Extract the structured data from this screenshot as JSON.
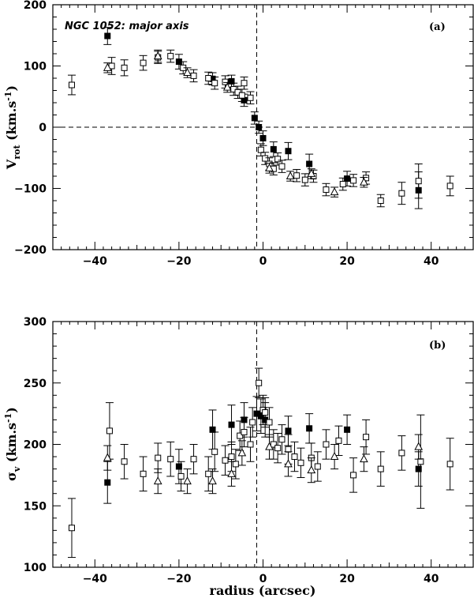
{
  "chart_data": [
    {
      "type": "scatter",
      "panel_label": "(a)",
      "title": "NGC 1052: major axis",
      "ylabel": {
        "main": "V",
        "sub": "rot",
        "unit": " (km.s",
        "exp": "-1",
        "close": ")"
      },
      "xlim": [
        -50,
        50
      ],
      "ylim": [
        -200,
        200
      ],
      "xticks": [
        -40,
        -20,
        0,
        20,
        40
      ],
      "xtick_labels": [
        "−40",
        "−20",
        "0",
        "20",
        "40"
      ],
      "yticks": [
        -200,
        -100,
        0,
        100,
        200
      ],
      "ytick_labels": [
        "−200",
        "−100",
        "0",
        "100",
        "200"
      ],
      "reference_lines": {
        "x": -1.5,
        "y": 0
      },
      "series": [
        {
          "marker": "filled-square",
          "points": [
            {
              "x": -37,
              "y": 149,
              "err": 14
            },
            {
              "x": -20,
              "y": 107,
              "err": 12
            },
            {
              "x": -12,
              "y": 79,
              "err": 10
            },
            {
              "x": -7.5,
              "y": 75,
              "err": 10
            },
            {
              "x": -4.5,
              "y": 44,
              "err": 10
            },
            {
              "x": -2,
              "y": 15,
              "err": 10
            },
            {
              "x": -1,
              "y": 0,
              "err": 10
            },
            {
              "x": 0,
              "y": -18,
              "err": 12
            },
            {
              "x": 2.5,
              "y": -36,
              "err": 12
            },
            {
              "x": 6,
              "y": -39,
              "err": 14
            },
            {
              "x": 11,
              "y": -60,
              "err": 16
            },
            {
              "x": 20,
              "y": -84,
              "err": 12
            },
            {
              "x": 37,
              "y": -103,
              "err": 30
            }
          ]
        },
        {
          "marker": "open-square",
          "points": [
            {
              "x": -45.5,
              "y": 69,
              "err": 16
            },
            {
              "x": -36,
              "y": 100,
              "err": 14
            },
            {
              "x": -33,
              "y": 97,
              "err": 13
            },
            {
              "x": -28.5,
              "y": 105,
              "err": 12
            },
            {
              "x": -25,
              "y": 114,
              "err": 10
            },
            {
              "x": -22,
              "y": 116,
              "err": 10
            },
            {
              "x": -19,
              "y": 97,
              "err": 10
            },
            {
              "x": -16.5,
              "y": 84,
              "err": 10
            },
            {
              "x": -13,
              "y": 80,
              "err": 10
            },
            {
              "x": -11.5,
              "y": 72,
              "err": 10
            },
            {
              "x": -9,
              "y": 74,
              "err": 10
            },
            {
              "x": -7,
              "y": 62,
              "err": 10
            },
            {
              "x": -6,
              "y": 57,
              "err": 10
            },
            {
              "x": -5,
              "y": 52,
              "err": 10
            },
            {
              "x": -4.5,
              "y": 72,
              "err": 10
            },
            {
              "x": -3,
              "y": 48,
              "err": 10
            },
            {
              "x": -0.5,
              "y": -37,
              "err": 10
            },
            {
              "x": 0.5,
              "y": -51,
              "err": 10
            },
            {
              "x": 1.5,
              "y": -60,
              "err": 10
            },
            {
              "x": 2.5,
              "y": -68,
              "err": 10
            },
            {
              "x": 3.5,
              "y": -52,
              "err": 10
            },
            {
              "x": 4.5,
              "y": -64,
              "err": 10
            },
            {
              "x": 8,
              "y": -79,
              "err": 10
            },
            {
              "x": 10,
              "y": -86,
              "err": 10
            },
            {
              "x": 12,
              "y": -80,
              "err": 10
            },
            {
              "x": 15,
              "y": -102,
              "err": 10
            },
            {
              "x": 19,
              "y": -93,
              "err": 10
            },
            {
              "x": 21.5,
              "y": -87,
              "err": 10
            },
            {
              "x": 24.5,
              "y": -83,
              "err": 10
            },
            {
              "x": 28,
              "y": -120,
              "err": 10
            },
            {
              "x": 33,
              "y": -108,
              "err": 18
            },
            {
              "x": 37,
              "y": -88,
              "err": 28
            },
            {
              "x": 44.5,
              "y": -96,
              "err": 16
            }
          ]
        },
        {
          "marker": "open-triangle",
          "points": [
            {
              "x": -37,
              "y": 97,
              "err": 8
            },
            {
              "x": -25,
              "y": 116,
              "err": 10
            },
            {
              "x": -18,
              "y": 89,
              "err": 8
            },
            {
              "x": -8.5,
              "y": 65,
              "err": 8
            },
            {
              "x": 1.5,
              "y": -67,
              "err": 8
            },
            {
              "x": 6.5,
              "y": -80,
              "err": 8
            },
            {
              "x": 11.5,
              "y": -76,
              "err": 8
            },
            {
              "x": 17,
              "y": -106,
              "err": 8
            },
            {
              "x": 24,
              "y": -90,
              "err": 8
            }
          ]
        }
      ]
    },
    {
      "type": "scatter",
      "panel_label": "(b)",
      "xlabel": "radius (arcsec)",
      "ylabel": {
        "main": "σ",
        "sub": "v",
        "unit": " (km.s",
        "exp": "-1",
        "close": ")"
      },
      "xlim": [
        -50,
        50
      ],
      "ylim": [
        100,
        300
      ],
      "xticks": [
        -40,
        -20,
        0,
        20,
        40
      ],
      "xtick_labels": [
        "−40",
        "−20",
        "0",
        "20",
        "40"
      ],
      "yticks": [
        100,
        150,
        200,
        250,
        300
      ],
      "ytick_labels": [
        "100",
        "150",
        "200",
        "250",
        "300"
      ],
      "reference_lines": {
        "x": -1.5
      },
      "series": [
        {
          "marker": "filled-square",
          "points": [
            {
              "x": -37,
              "y": 169,
              "err": 17
            },
            {
              "x": -20,
              "y": 182,
              "err": 14
            },
            {
              "x": -12,
              "y": 212,
              "err": 16
            },
            {
              "x": -7.5,
              "y": 216,
              "err": 16
            },
            {
              "x": -4.5,
              "y": 220,
              "err": 14
            },
            {
              "x": -1.5,
              "y": 225,
              "err": 14
            },
            {
              "x": -0.5,
              "y": 223,
              "err": 14
            },
            {
              "x": 0.5,
              "y": 220,
              "err": 14
            },
            {
              "x": 6,
              "y": 211,
              "err": 12
            },
            {
              "x": 11,
              "y": 213,
              "err": 12
            },
            {
              "x": 20,
              "y": 212,
              "err": 12
            },
            {
              "x": 37,
              "y": 180,
              "err": 14
            }
          ]
        },
        {
          "marker": "open-square",
          "points": [
            {
              "x": -45.5,
              "y": 132,
              "err": 24
            },
            {
              "x": -36.5,
              "y": 211,
              "err": 23
            },
            {
              "x": -33,
              "y": 186,
              "err": 14
            },
            {
              "x": -28.5,
              "y": 176,
              "err": 14
            },
            {
              "x": -25,
              "y": 189,
              "err": 12
            },
            {
              "x": -22,
              "y": 188,
              "err": 14
            },
            {
              "x": -19.5,
              "y": 174,
              "err": 12
            },
            {
              "x": -16.5,
              "y": 188,
              "err": 12
            },
            {
              "x": -13,
              "y": 176,
              "err": 14
            },
            {
              "x": -11.5,
              "y": 194,
              "err": 16
            },
            {
              "x": -9,
              "y": 187,
              "err": 12
            },
            {
              "x": -7.5,
              "y": 190,
              "err": 12
            },
            {
              "x": -6.5,
              "y": 184,
              "err": 12
            },
            {
              "x": -5.5,
              "y": 207,
              "err": 12
            },
            {
              "x": -4.5,
              "y": 210,
              "err": 12
            },
            {
              "x": -3,
              "y": 200,
              "err": 14
            },
            {
              "x": -2.5,
              "y": 218,
              "err": 12
            },
            {
              "x": -1,
              "y": 250,
              "err": 12
            },
            {
              "x": 0,
              "y": 228,
              "err": 12
            },
            {
              "x": 0.5,
              "y": 226,
              "err": 12
            },
            {
              "x": 1.5,
              "y": 218,
              "err": 12
            },
            {
              "x": 2.5,
              "y": 200,
              "err": 12
            },
            {
              "x": 3.5,
              "y": 197,
              "err": 12
            },
            {
              "x": 4.5,
              "y": 204,
              "err": 12
            },
            {
              "x": 6,
              "y": 196,
              "err": 12
            },
            {
              "x": 7.5,
              "y": 190,
              "err": 12
            },
            {
              "x": 9,
              "y": 185,
              "err": 12
            },
            {
              "x": 11.5,
              "y": 189,
              "err": 12
            },
            {
              "x": 13,
              "y": 182,
              "err": 12
            },
            {
              "x": 15,
              "y": 200,
              "err": 12
            },
            {
              "x": 18,
              "y": 203,
              "err": 12
            },
            {
              "x": 21.5,
              "y": 175,
              "err": 14
            },
            {
              "x": 24.5,
              "y": 206,
              "err": 14
            },
            {
              "x": 28,
              "y": 180,
              "err": 14
            },
            {
              "x": 33,
              "y": 193,
              "err": 14
            },
            {
              "x": 37.5,
              "y": 186,
              "err": 38
            },
            {
              "x": 44.5,
              "y": 184,
              "err": 21
            }
          ]
        },
        {
          "marker": "open-triangle",
          "points": [
            {
              "x": -37,
              "y": 189,
              "err": 10
            },
            {
              "x": -25,
              "y": 170,
              "err": 10
            },
            {
              "x": -18,
              "y": 170,
              "err": 10
            },
            {
              "x": -12,
              "y": 170,
              "err": 10
            },
            {
              "x": -7.5,
              "y": 176,
              "err": 10
            },
            {
              "x": -5,
              "y": 193,
              "err": 10
            },
            {
              "x": 1.5,
              "y": 198,
              "err": 10
            },
            {
              "x": 6,
              "y": 184,
              "err": 10
            },
            {
              "x": 11.5,
              "y": 179,
              "err": 10
            },
            {
              "x": 17,
              "y": 190,
              "err": 10
            },
            {
              "x": 24,
              "y": 188,
              "err": 10
            },
            {
              "x": 37,
              "y": 198,
              "err": 10
            }
          ]
        }
      ]
    }
  ]
}
